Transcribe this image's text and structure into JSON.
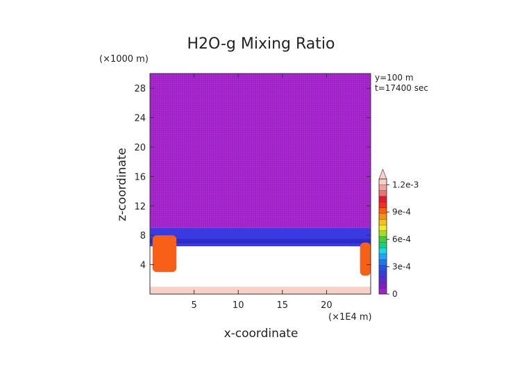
{
  "chart_data": {
    "type": "heatmap",
    "title": "H2O-g Mixing Ratio",
    "xlabel": "x-coordinate",
    "ylabel": "z-coordinate",
    "x_units": "(×1E4 m)",
    "y_units": "(×1000 m)",
    "xlim": [
      0,
      25
    ],
    "ylim": [
      0,
      30
    ],
    "x_ticks": [
      5,
      10,
      15,
      20
    ],
    "y_ticks": [
      4,
      8,
      12,
      16,
      20,
      24,
      28
    ],
    "annotations": [
      "y=100 m",
      "t=17400 sec"
    ],
    "colorbar": {
      "min": 0,
      "max": 0.0012,
      "tick_labels": [
        "0",
        "3e-4",
        "6e-4",
        "9e-4",
        "1.2e-3"
      ],
      "tick_values": [
        0,
        0.0003,
        0.0006,
        0.0009,
        0.0012
      ],
      "colors": [
        "#a020c8",
        "#7a1fc4",
        "#5b2bd0",
        "#3a3ae0",
        "#2050f0",
        "#1e74ff",
        "#1aa8ff",
        "#19d8e8",
        "#1ad080",
        "#3cd23c",
        "#a0e020",
        "#f0f010",
        "#f8c010",
        "#f89010",
        "#f86018",
        "#f03020",
        "#e81830",
        "#f07070",
        "#f8a0a0",
        "#f8d0c8"
      ]
    },
    "regions": [
      {
        "name": "upper-layer",
        "x": [
          0,
          25
        ],
        "z": [
          9,
          30
        ],
        "value": 2e-05
      },
      {
        "name": "moist-band",
        "x": [
          0,
          25
        ],
        "z": [
          6.5,
          9
        ],
        "value": 0.00025
      },
      {
        "name": "dry-zone",
        "x": [
          2.5,
          23.5
        ],
        "z": [
          1,
          6.5
        ],
        "value": 0
      },
      {
        "name": "left-plume",
        "x": [
          0.3,
          3
        ],
        "z": [
          3,
          8
        ],
        "value": 0.0009
      },
      {
        "name": "right-plume",
        "x": [
          23.8,
          25
        ],
        "z": [
          2.5,
          7
        ],
        "value": 0.0009
      },
      {
        "name": "surface-layer",
        "x": [
          0,
          25
        ],
        "z": [
          0,
          1
        ],
        "value": 0.0012
      }
    ]
  }
}
